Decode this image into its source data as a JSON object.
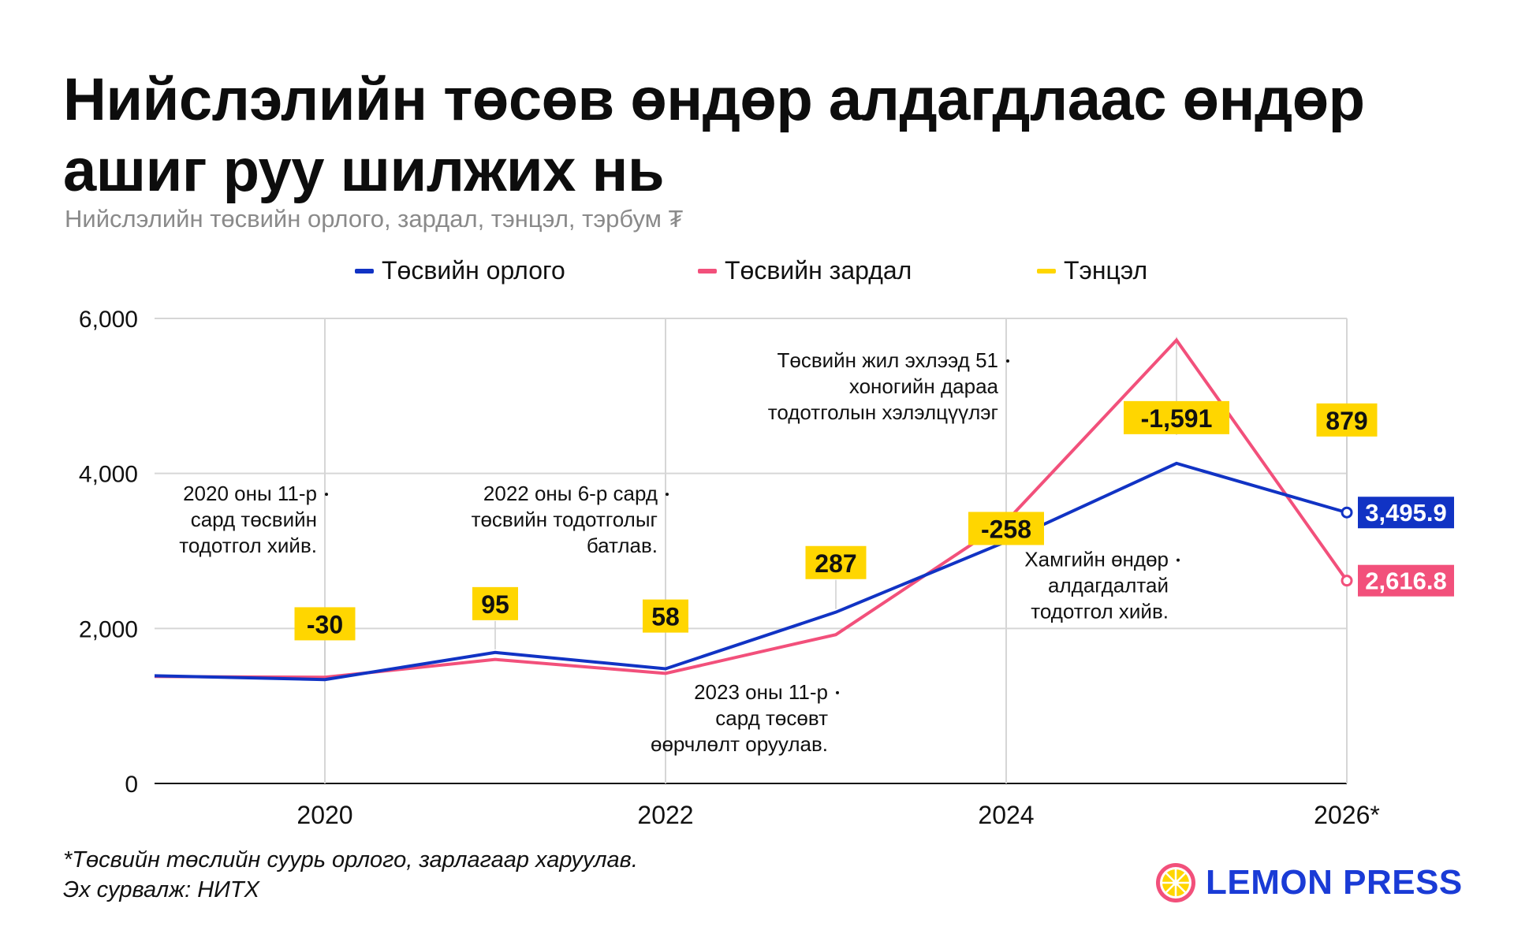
{
  "header": {
    "title": "Нийслэлийн төсөв өндөр алдагдлаас өндөр ашиг руу шилжих нь",
    "subtitle": "Нийслэлийн төсвийн орлого, зардал, тэнцэл, тэрбум ₮"
  },
  "colors": {
    "income": "#1133c4",
    "expense": "#f2507b",
    "balance": "#ffd600",
    "grid": "#d6d6d6",
    "text": "#111111"
  },
  "chart_data": {
    "type": "line",
    "x": [
      2019,
      2020,
      2021,
      2022,
      2023,
      2024,
      2025,
      2026
    ],
    "x_tick_labels": [
      {
        "x": 2020,
        "label": "2020"
      },
      {
        "x": 2022,
        "label": "2022"
      },
      {
        "x": 2024,
        "label": "2024"
      },
      {
        "x": 2026,
        "label": "2026*"
      }
    ],
    "y_ticks": [
      {
        "value": 0,
        "label": "0"
      },
      {
        "value": 2000,
        "label": "2,000"
      },
      {
        "value": 4000,
        "label": "4,000"
      },
      {
        "value": 6000,
        "label": "6,000"
      }
    ],
    "ylim": [
      0,
      6000
    ],
    "xlim": [
      2019,
      2026
    ],
    "grid": true,
    "legend_position": "top",
    "series": [
      {
        "name": "Төсвийн орлого",
        "color": "#1133c4",
        "values": [
          1390,
          1340,
          1690,
          1480,
          2210,
          3120,
          4130,
          3495.9
        ]
      },
      {
        "name": "Төсвийн зардал",
        "color": "#f2507b",
        "values": [
          1380,
          1370,
          1600,
          1420,
          1920,
          3380,
          5720,
          2616.8
        ]
      }
    ],
    "balance": {
      "name": "Тэнцэл",
      "color": "#ffd600",
      "points": [
        {
          "x": 2020,
          "y_level": 2060,
          "label": "-30"
        },
        {
          "x": 2021,
          "y_level": 2320,
          "label": "95"
        },
        {
          "x": 2022,
          "y_level": 2160,
          "label": "58"
        },
        {
          "x": 2023,
          "y_level": 2850,
          "label": "287"
        },
        {
          "x": 2024,
          "y_level": 3290,
          "label": "-258"
        },
        {
          "x": 2025,
          "y_level": 4720,
          "label": "-1,591"
        },
        {
          "x": 2026,
          "y_level": 4690,
          "label": "879"
        }
      ]
    },
    "end_labels": [
      {
        "series": "Төсвийн орлого",
        "x": 2026,
        "y": 3495.9,
        "label": "3,495.9"
      },
      {
        "series": "Төсвийн зардал",
        "x": 2026,
        "y": 2616.8,
        "label": "2,616.8"
      }
    ],
    "annotations": [
      {
        "x": 2020,
        "y": 3650,
        "lines": [
          "2020 оны 11-р",
          "сард төсвийн",
          "тодотгол хийв."
        ]
      },
      {
        "x": 2022,
        "y": 3650,
        "lines": [
          "2022 оны 6-р сард",
          "төсвийн тодотголыг",
          "батлав."
        ]
      },
      {
        "x": 2023,
        "y": 1090,
        "lines": [
          "2023 оны 11-р",
          "сард төсөвт",
          "өөрчлөлт оруулав."
        ]
      },
      {
        "x": 2024,
        "y": 5370,
        "lines": [
          "Төсвийн жил эхлээд 51",
          "хоногийн дараа",
          "тодотголын хэлэлцүүлэг"
        ]
      },
      {
        "x": 2025,
        "y": 2800,
        "lines": [
          "Хамгийн өндөр",
          "алдагдалтай",
          "тодотгол хийв."
        ]
      }
    ]
  },
  "footnote": {
    "line1": "*Төсвийн төслийн суурь орлого, зарлагаар харуулав.",
    "line2": "Эх сурвалж: НИТХ"
  },
  "logo": {
    "text": "LEMON PRESS",
    "icon": "lemon-icon"
  }
}
